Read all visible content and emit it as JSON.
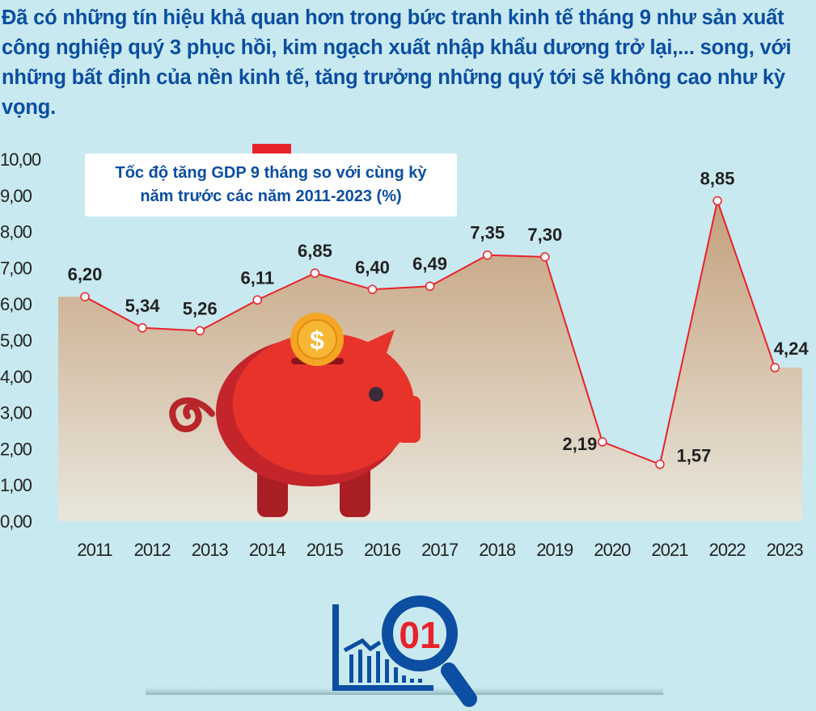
{
  "intro_text": "Đã có những tín hiệu khả quan hơn trong bức tranh kinh tế tháng 9 như sản xuất công nghiệp quý 3 phục hồi, kim ngạch xuất nhập khẩu dương trở lại,... song, với những bất định của nền kinh tế, tăng trưởng những quý tới sẽ không cao như kỳ vọng.",
  "chart_data": {
    "type": "area",
    "title_line1": "Tốc độ tăng GDP 9 tháng so với cùng kỳ",
    "title_line2": "năm trước các năm 2011-2023 (%)",
    "categories": [
      "2011",
      "2012",
      "2013",
      "2014",
      "2015",
      "2016",
      "2017",
      "2018",
      "2019",
      "2020",
      "2021",
      "2022",
      "2023"
    ],
    "values": [
      6.2,
      5.34,
      5.26,
      6.11,
      6.85,
      6.4,
      6.49,
      7.35,
      7.3,
      2.19,
      1.57,
      8.85,
      4.24
    ],
    "data_labels": [
      "6,20",
      "5,34",
      "5,26",
      "6,11",
      "6,85",
      "6,40",
      "6,49",
      "7,35",
      "7,30",
      "2,19",
      "1,57",
      "8,85",
      "4,24"
    ],
    "yticks": [
      "0,00",
      "1,00",
      "2,00",
      "3,00",
      "4,00",
      "5,00",
      "6,00",
      "7,00",
      "8,00",
      "9,00",
      "10,00"
    ],
    "ylim": [
      0,
      10
    ],
    "line_color": "#e8222a",
    "fill_color": "#c4a07c"
  },
  "icon_badge": "01",
  "colors": {
    "background": "#c9e9f0",
    "text": "#0b4ea2",
    "accent": "#e8222a"
  }
}
